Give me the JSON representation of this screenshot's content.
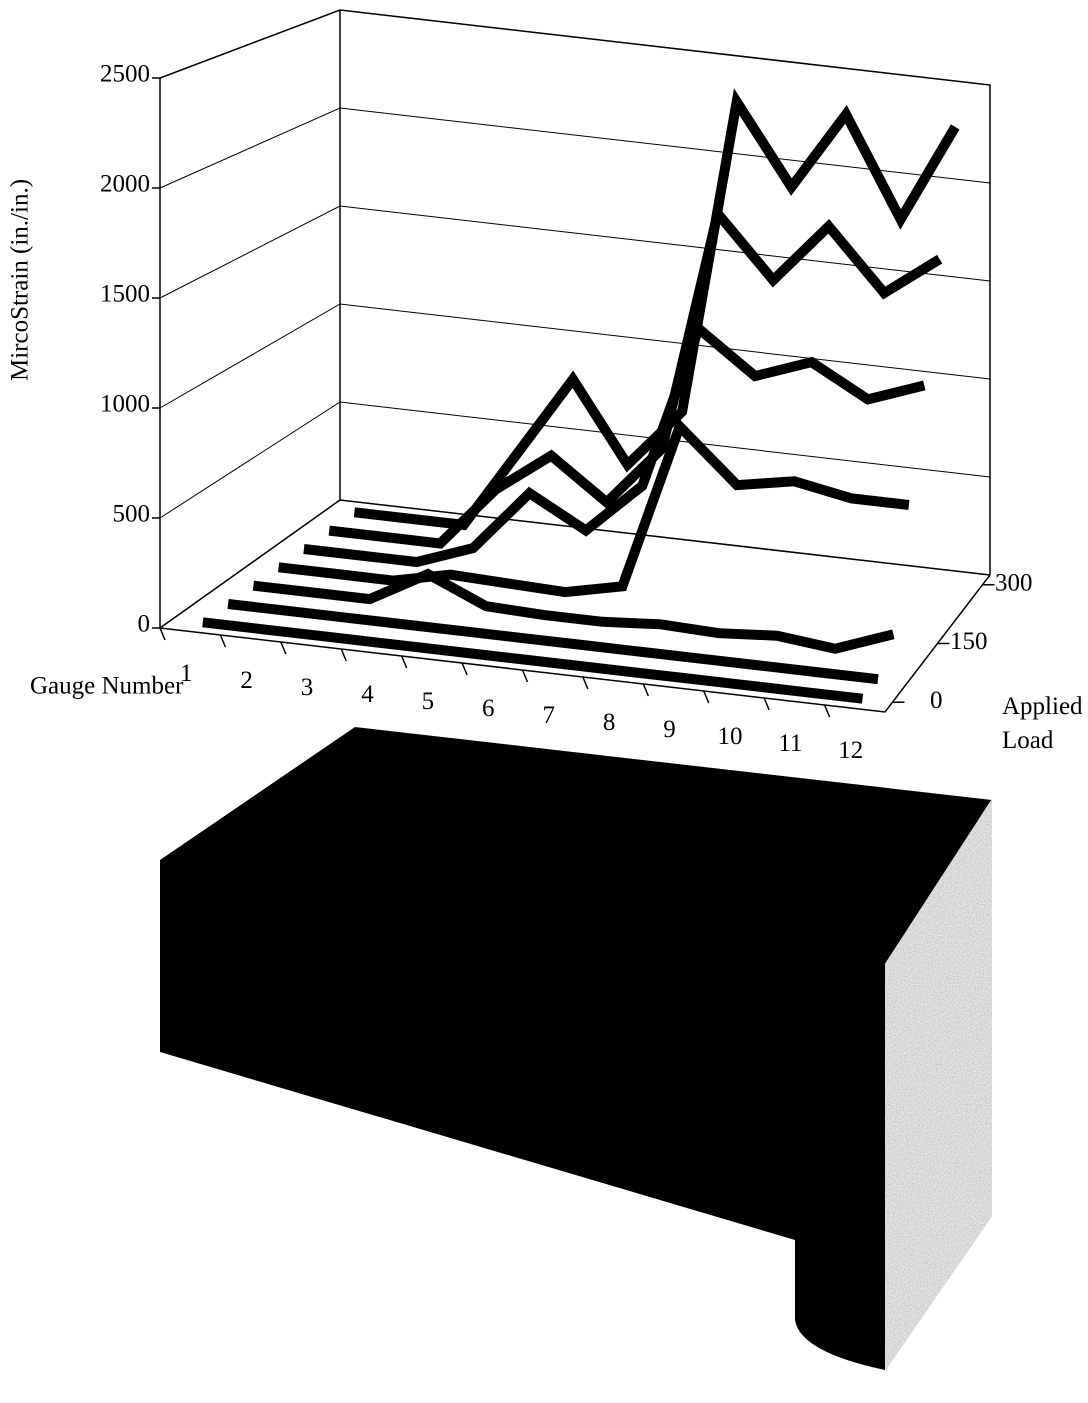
{
  "chart_data": {
    "type": "line3d",
    "y_label": "MircoStrain (in./in.)",
    "x_label": "Gauge Number",
    "z_label": "Applied Load",
    "categories": [
      "1",
      "2",
      "3",
      "4",
      "5",
      "6",
      "7",
      "8",
      "9",
      "10",
      "11",
      "12"
    ],
    "ylim": [
      0,
      2500
    ],
    "yticks": [
      0,
      500,
      1000,
      1500,
      2000,
      2500
    ],
    "zlim": [
      0,
      300
    ],
    "zticks": [
      0,
      150,
      300
    ],
    "color": "#000000",
    "series": [
      {
        "values": [
          0,
          0,
          0,
          0,
          0,
          0,
          0,
          0,
          0,
          0,
          0,
          0
        ]
      },
      {
        "values": [
          0,
          0,
          0,
          0,
          0,
          0,
          0,
          0,
          0,
          0,
          0,
          0
        ]
      },
      {
        "values": [
          0,
          0,
          0,
          150,
          30,
          20,
          20,
          40,
          30,
          50,
          20,
          120
        ]
      },
      {
        "values": [
          0,
          0,
          0,
          60,
          50,
          40,
          100,
          900,
          650,
          700,
          650,
          650
        ]
      },
      {
        "values": [
          0,
          0,
          0,
          100,
          400,
          250,
          500,
          1300,
          1100,
          1200,
          1050,
          1150
        ]
      },
      {
        "values": [
          0,
          0,
          0,
          300,
          500,
          300,
          600,
          1800,
          1500,
          1800,
          1500,
          1700
        ]
      },
      {
        "values": [
          0,
          0,
          0,
          400,
          800,
          400,
          700,
          2300,
          1900,
          2300,
          1800,
          2300
        ]
      }
    ]
  }
}
